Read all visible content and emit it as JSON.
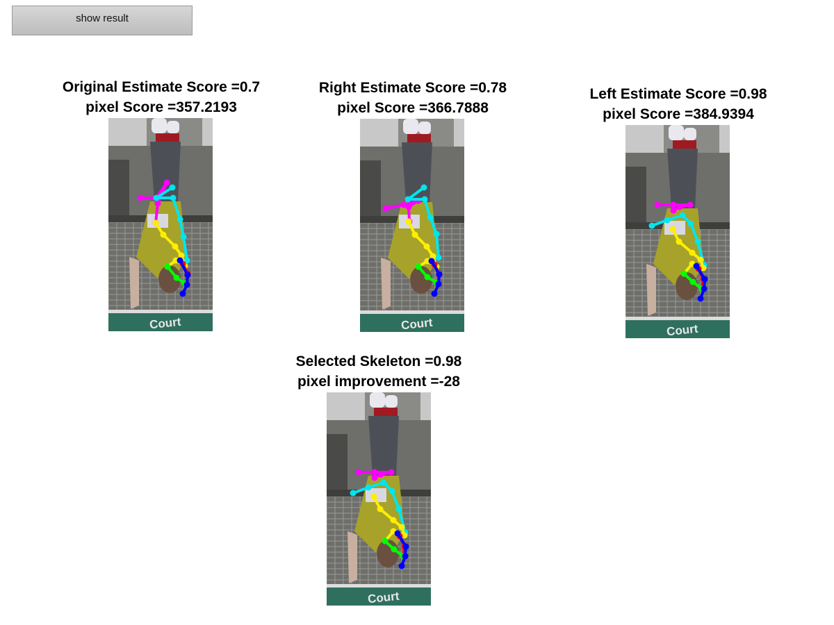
{
  "toolbar": {
    "show_result_label": "show result"
  },
  "panels": {
    "original": {
      "line1": "Original Estimate Score =0.7",
      "line2": "pixel Score =357.2193"
    },
    "right": {
      "line1": "Right Estimate Score =0.78",
      "line2": "pixel Score =366.7888"
    },
    "left": {
      "line1": "Left Estimate Score =0.98",
      "line2": "pixel Score =384.9394"
    },
    "selected": {
      "line1": "Selected Skeleton =0.98",
      "line2": "pixel improvement =-28"
    }
  },
  "image": {
    "sign_text": "Court"
  },
  "colors": {
    "magenta": "#ff00ff",
    "cyan": "#00e5ee",
    "yellow": "#ffee00",
    "red": "#ff0000",
    "green": "#00ff00",
    "blue": "#0000ff"
  }
}
